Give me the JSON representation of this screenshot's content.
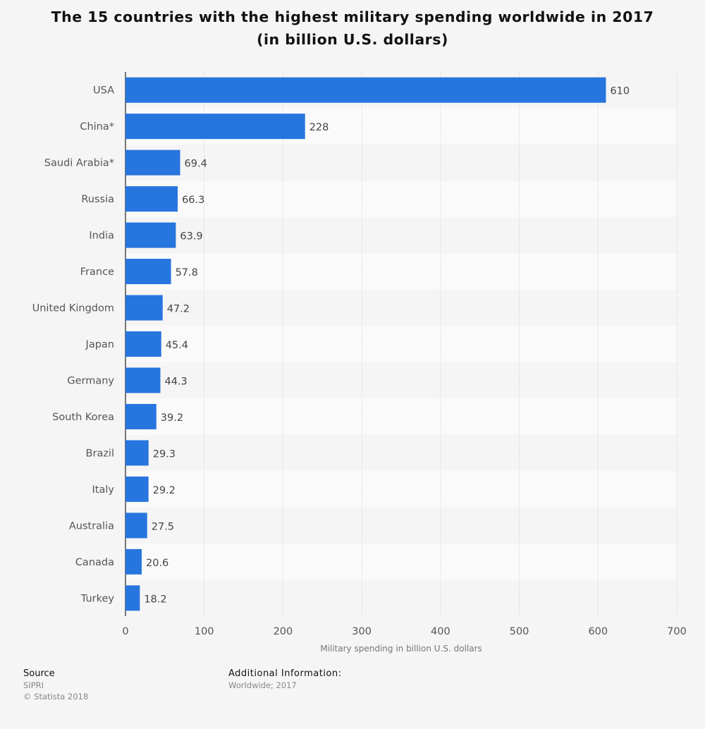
{
  "title_line1": "The 15 countries with the highest military spending worldwide in 2017",
  "title_line2": "(in billion U.S. dollars)",
  "chart_data": {
    "type": "bar",
    "orientation": "horizontal",
    "categories": [
      "USA",
      "China*",
      "Saudi Arabia*",
      "Russia",
      "India",
      "France",
      "United Kingdom",
      "Japan",
      "Germany",
      "South Korea",
      "Brazil",
      "Italy",
      "Australia",
      "Canada",
      "Turkey"
    ],
    "values": [
      610,
      228,
      69.4,
      66.3,
      63.9,
      57.8,
      47.2,
      45.4,
      44.3,
      39.2,
      29.3,
      29.2,
      27.5,
      20.6,
      18.2
    ],
    "value_labels": [
      "610",
      "228",
      "69.4",
      "66.3",
      "63.9",
      "57.8",
      "47.2",
      "45.4",
      "44.3",
      "39.2",
      "29.3",
      "29.2",
      "27.5",
      "20.6",
      "18.2"
    ],
    "xlabel": "Military spending in billion U.S. dollars",
    "xlim": [
      0,
      700
    ],
    "xticks": [
      0,
      100,
      200,
      300,
      400,
      500,
      600,
      700
    ],
    "bar_color": "#2775de",
    "grid": true
  },
  "footer": {
    "source_heading": "Source",
    "source_name": "SIPRI",
    "copyright": "© Statista 2018",
    "info_heading": "Additional Information:",
    "info_text": "Worldwide; 2017"
  }
}
